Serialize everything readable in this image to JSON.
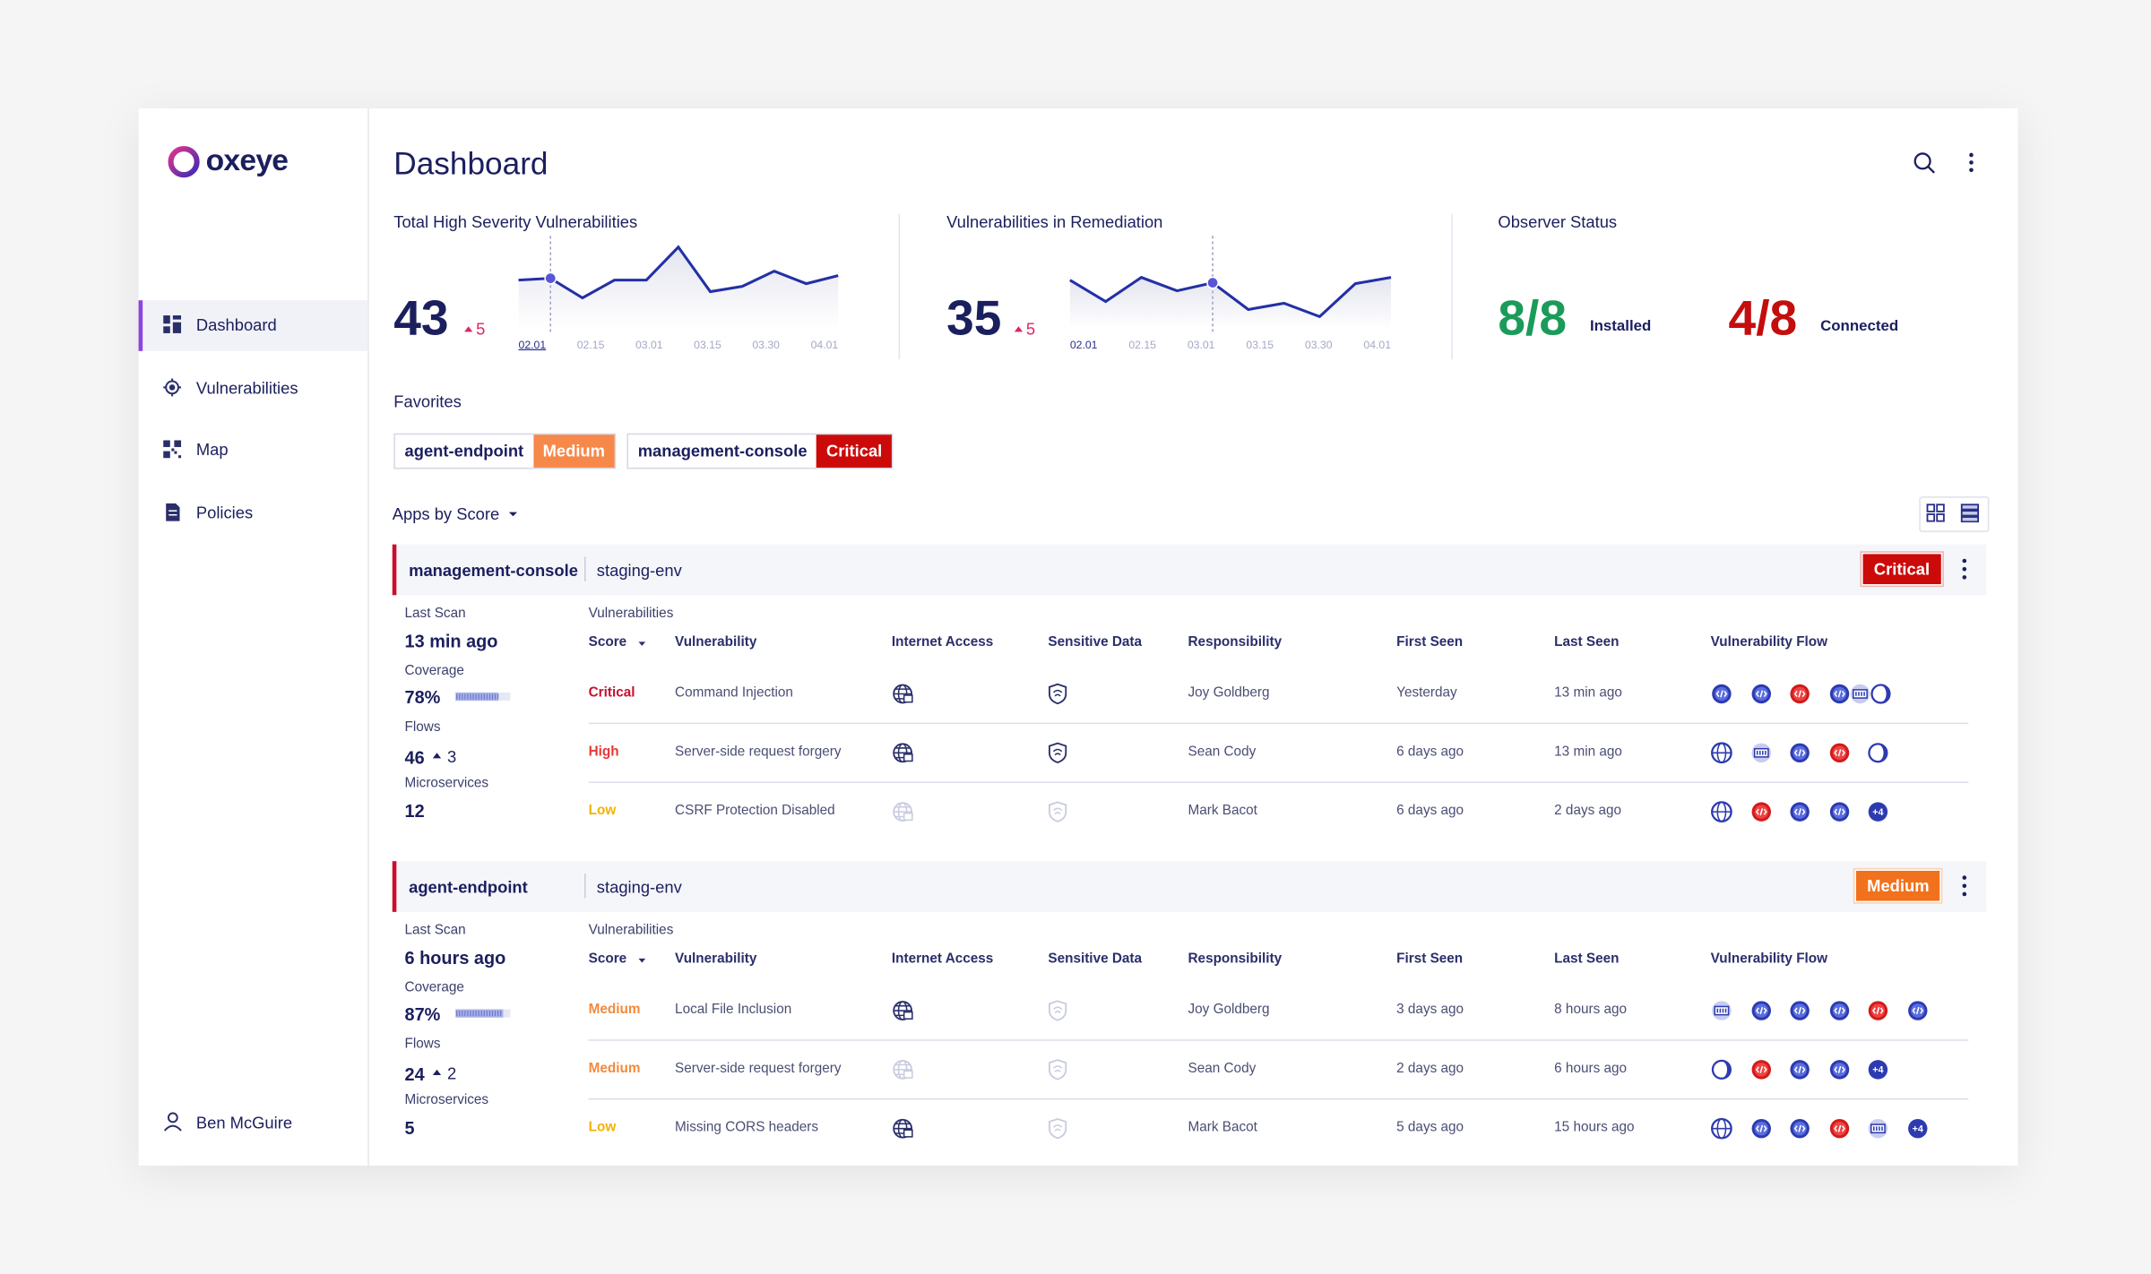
{
  "sidebar": {
    "logo": "oxeye",
    "nav": [
      "Dashboard",
      "Vulnerabilities",
      "Map",
      "Policies"
    ],
    "user": "Ben McGuire"
  },
  "header": {
    "title": "Dashboard"
  },
  "stats": [
    {
      "title": "Total High Severity Vulnerabilities",
      "value": "43",
      "delta": "5",
      "chart": {
        "type": "line",
        "x_labels": [
          "02.01",
          "02.15",
          "03.01",
          "03.15",
          "03.30",
          "04.01"
        ],
        "values": [
          5.5,
          5.7,
          3.5,
          5.5,
          5.5,
          9.2,
          4.2,
          4.8,
          6.5,
          5.1,
          6.0
        ],
        "ylim": [
          0,
          10
        ],
        "marker_index": 1
      }
    },
    {
      "title": "Vulnerabilities in Remediation",
      "value": "35",
      "delta": "5",
      "chart": {
        "type": "line",
        "x_labels": [
          "02.01",
          "02.15",
          "03.01",
          "03.15",
          "03.30",
          "04.01"
        ],
        "values": [
          5.5,
          3.1,
          5.8,
          4.3,
          5.2,
          2.2,
          2.9,
          1.4,
          5.1,
          5.8
        ],
        "ylim": [
          0,
          10
        ],
        "marker_index": 4
      }
    }
  ],
  "observer": {
    "title": "Observer Status",
    "items": [
      {
        "value": "8/8",
        "label": "Installed",
        "color": "#1a9b5a"
      },
      {
        "value": "4/8",
        "label": "Connected",
        "color": "#c40d0d"
      }
    ]
  },
  "favorites": {
    "title": "Favorites",
    "items": [
      {
        "name": "agent-endpoint",
        "severity": "Medium"
      },
      {
        "name": "management-console",
        "severity": "Critical"
      }
    ]
  },
  "apps_title": "Apps by Score",
  "apps": [
    {
      "name": "management-console",
      "env": "staging-env",
      "severity": "Critical",
      "last_scan_label": "Last Scan",
      "last_scan": "13 min ago",
      "coverage_label": "Coverage",
      "coverage": {
        "value": 78,
        "label": "78%"
      },
      "flows_label": "Flows",
      "flows": "46",
      "flows_delta": "3",
      "microservices_label": "Microservices",
      "microservices": "12",
      "table": {
        "title": "Vulnerabilities",
        "columns": [
          "Score",
          "Vulnerability",
          "Internet Access",
          "Sensitive Data",
          "Responsibility",
          "First Seen",
          "Last Seen",
          "Vulnerability Flow"
        ],
        "rows": [
          {
            "score": "Critical",
            "vulnerability": "Command Injection",
            "internet": true,
            "sensitive": true,
            "responsibility": "Joy Goldberg",
            "first_seen": "Yesterday",
            "last_seen": "13 min ago"
          },
          {
            "score": "High",
            "vulnerability": "Server-side request forgery",
            "internet": true,
            "sensitive": true,
            "responsibility": "Sean Cody",
            "first_seen": "6 days ago",
            "last_seen": "13 min ago"
          },
          {
            "score": "Low",
            "vulnerability": "CSRF Protection Disabled",
            "internet": false,
            "sensitive": false,
            "responsibility": "Mark Bacot",
            "first_seen": "6 days ago",
            "last_seen": "2 days ago",
            "flow_more": "+4"
          }
        ]
      }
    },
    {
      "name": "agent-endpoint",
      "env": "staging-env",
      "severity": "Medium",
      "last_scan_label": "Last Scan",
      "last_scan": "6 hours ago",
      "coverage_label": "Coverage",
      "coverage": {
        "value": 87,
        "label": "87%"
      },
      "flows_label": "Flows",
      "flows": "24",
      "flows_delta": "2",
      "microservices_label": "Microservices",
      "microservices": "5",
      "table": {
        "title": "Vulnerabilities",
        "columns": [
          "Score",
          "Vulnerability",
          "Internet Access",
          "Sensitive Data",
          "Responsibility",
          "First Seen",
          "Last Seen",
          "Vulnerability Flow"
        ],
        "rows": [
          {
            "score": "Medium",
            "vulnerability": "Local File Inclusion",
            "internet": true,
            "sensitive": false,
            "responsibility": "Joy Goldberg",
            "first_seen": "3 days ago",
            "last_seen": "8 hours ago"
          },
          {
            "score": "Medium",
            "vulnerability": "Server-side request forgery",
            "internet": false,
            "sensitive": false,
            "responsibility": "Sean Cody",
            "first_seen": "2 days ago",
            "last_seen": "6 hours ago",
            "flow_more": "+4"
          },
          {
            "score": "Low",
            "vulnerability": "Missing CORS headers",
            "internet": true,
            "sensitive": false,
            "responsibility": "Mark Bacot",
            "first_seen": "5 days ago",
            "last_seen": "15 hours ago",
            "flow_more": "+4"
          }
        ]
      }
    }
  ]
}
